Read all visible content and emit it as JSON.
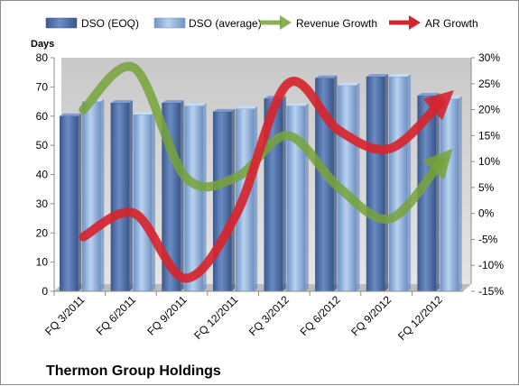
{
  "chart_data": {
    "type": "bar",
    "title": "Thermon Group Holdings",
    "ylabel_left": "Days",
    "categories": [
      "FQ 3/2011",
      "FQ 6/2011",
      "FQ 9/2011",
      "FQ 12/2011",
      "FQ 3/2012",
      "FQ 6/2012",
      "FQ 9/2012",
      "FQ 12/2012"
    ],
    "y_left": {
      "min": 0,
      "max": 80,
      "ticks": [
        "0",
        "10",
        "20",
        "30",
        "40",
        "50",
        "60",
        "70",
        "80"
      ]
    },
    "y_right": {
      "min": -15,
      "max": 30,
      "ticks": [
        "-15%",
        "-10%",
        "-5%",
        "0%",
        "5%",
        "10%",
        "15%",
        "20%",
        "25%",
        "30%"
      ]
    },
    "series": [
      {
        "name": "DSO (EOQ)",
        "type": "bar",
        "axis": "left",
        "values": [
          60,
          64.5,
          64.5,
          61.5,
          66,
          73,
          73.5,
          67
        ]
      },
      {
        "name": "DSO (average)",
        "type": "bar",
        "axis": "left",
        "values": [
          65,
          60.5,
          63.5,
          62.5,
          63.5,
          70.5,
          73.5,
          66
        ]
      },
      {
        "name": "Revenue Growth",
        "type": "line",
        "axis": "right",
        "values": [
          20,
          28,
          7,
          7,
          15,
          5,
          -1,
          10
        ]
      },
      {
        "name": "AR Growth",
        "type": "line",
        "axis": "right",
        "values": [
          -4.5,
          0,
          -12.5,
          0,
          25,
          16,
          12.5,
          21.5
        ]
      }
    ],
    "colors": {
      "dso_eoq": "#4f6fa8",
      "dso_avg": "#8fb2dc",
      "revenue_growth": "#77a33a",
      "ar_growth": "#d6252e"
    },
    "grid": false,
    "legend": "top"
  }
}
